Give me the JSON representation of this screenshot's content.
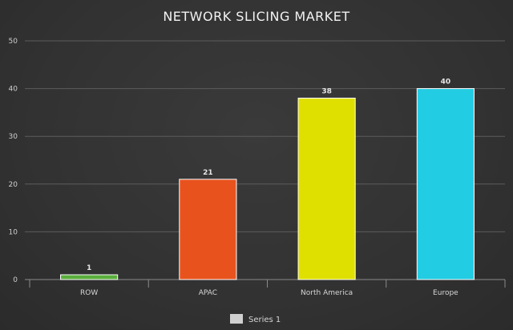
{
  "chart_data": {
    "type": "bar",
    "title": "NETWORK SLICING MARKET",
    "categories": [
      "ROW",
      "APAC",
      "North America",
      "Europe"
    ],
    "series": [
      {
        "name": "Series 1",
        "values": [
          1,
          21,
          38,
          40
        ]
      }
    ],
    "data_labels": [
      "1",
      "21",
      "38",
      "40"
    ],
    "y_ticks": [
      0,
      10,
      20,
      30,
      40,
      50
    ],
    "ylim": [
      0,
      50
    ],
    "grid": true,
    "legend": "bottom-center",
    "colors": {
      "bars": [
        "#5aae3c",
        "#e8531d",
        "#dfe000",
        "#22cce3"
      ],
      "bar_border": "#ffffff",
      "legend_swatch": "#d0d0d0",
      "grid": "#5c5c5c",
      "axis": "#8a8a8a"
    }
  }
}
